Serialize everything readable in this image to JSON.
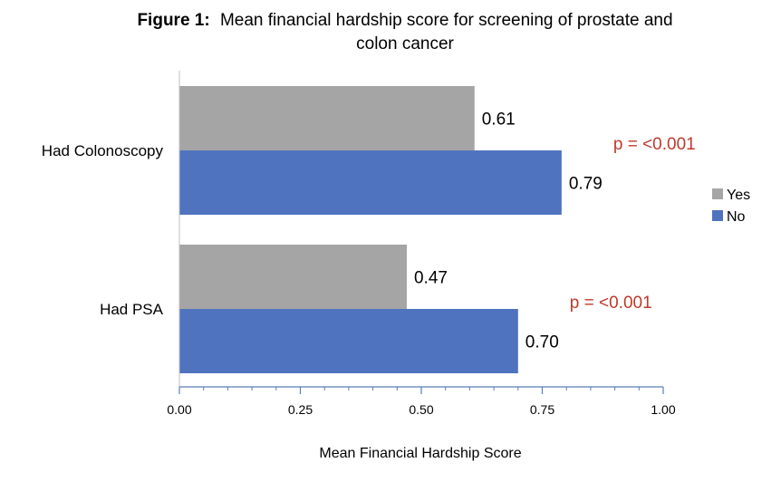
{
  "chart_data": {
    "type": "bar",
    "orientation": "horizontal",
    "title_prefix": "Figure 1:",
    "title_line1": "Mean financial hardship score for screening of prostate and",
    "title_line2": "colon cancer",
    "xlabel": "Mean Financial Hardship Score",
    "ylabel": "",
    "xlim": [
      0,
      1
    ],
    "xticks": [
      0,
      0.25,
      0.5,
      0.75,
      1
    ],
    "xtick_labels": [
      "0.00",
      "0.25",
      "0.50",
      "0.75",
      "1.00"
    ],
    "grid": false,
    "legend_position": "right",
    "categories": [
      "Had Colonoscopy",
      "Had PSA"
    ],
    "series": [
      {
        "name": "Yes",
        "color": "#A5A5A5",
        "values": [
          0.61,
          0.47
        ],
        "labels": [
          "0.61",
          "0.47"
        ]
      },
      {
        "name": "No",
        "color": "#4F73BE",
        "values": [
          0.79,
          0.7
        ],
        "labels": [
          "0.79",
          "0.70"
        ]
      }
    ],
    "annotations": [
      {
        "category": "Had Colonoscopy",
        "text": "p = <0.001",
        "color": "#C0392B"
      },
      {
        "category": "Had PSA",
        "text": "p = <0.001",
        "color": "#C0392B"
      }
    ]
  }
}
